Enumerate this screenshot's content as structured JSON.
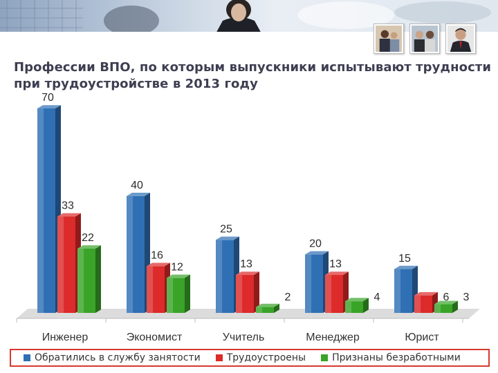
{
  "title": "Профессии ВПО, по которым выпускники испытывают трудности при трудоустройстве в 2013 году",
  "chart_data": {
    "type": "bar",
    "categories": [
      "Инженер",
      "Экономист",
      "Учитель",
      "Менеджер",
      "Юрист"
    ],
    "series": [
      {
        "name": "Обратились в службу занятости",
        "values": [
          70,
          40,
          25,
          20,
          15
        ],
        "color": "#2f6fb4"
      },
      {
        "name": "Трудоустроены",
        "values": [
          33,
          16,
          13,
          13,
          6
        ],
        "color": "#dd2a2a"
      },
      {
        "name": "Признаны безработными",
        "values": [
          22,
          12,
          2,
          4,
          3
        ],
        "color": "#39a428"
      }
    ],
    "ylim": [
      0,
      70
    ],
    "grid": false,
    "legend": "bottom",
    "style": "3d-clustered-bar"
  },
  "icons": [
    "business-meeting-photo",
    "business-meeting-photo",
    "businessman-photo"
  ]
}
